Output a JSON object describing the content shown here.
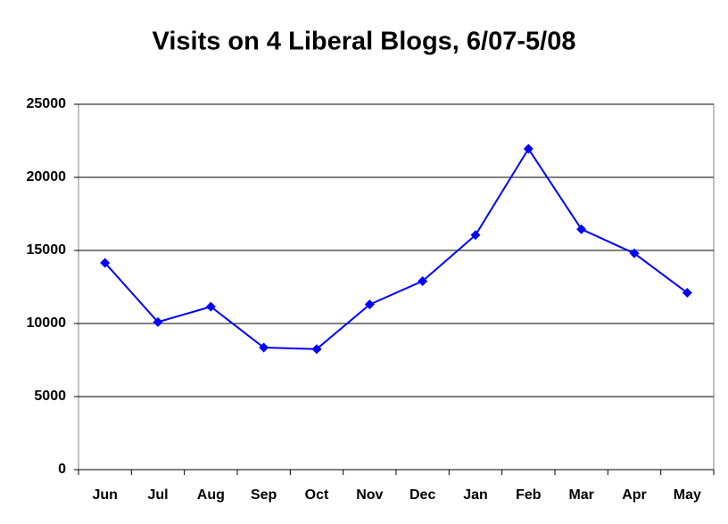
{
  "chart_data": {
    "type": "line",
    "title": "Visits on 4 Liberal Blogs, 6/07-5/08",
    "categories": [
      "Jun",
      "Jul",
      "Aug",
      "Sep",
      "Oct",
      "Nov",
      "Dec",
      "Jan",
      "Feb",
      "Mar",
      "Apr",
      "May"
    ],
    "values": [
      14150,
      10100,
      11150,
      8350,
      8250,
      11300,
      12900,
      16050,
      21950,
      16450,
      14800,
      12100
    ],
    "color": "#0000ff",
    "ylim": [
      0,
      25000
    ],
    "yticks": [
      0,
      5000,
      10000,
      15000,
      20000,
      25000
    ],
    "grid": true
  }
}
